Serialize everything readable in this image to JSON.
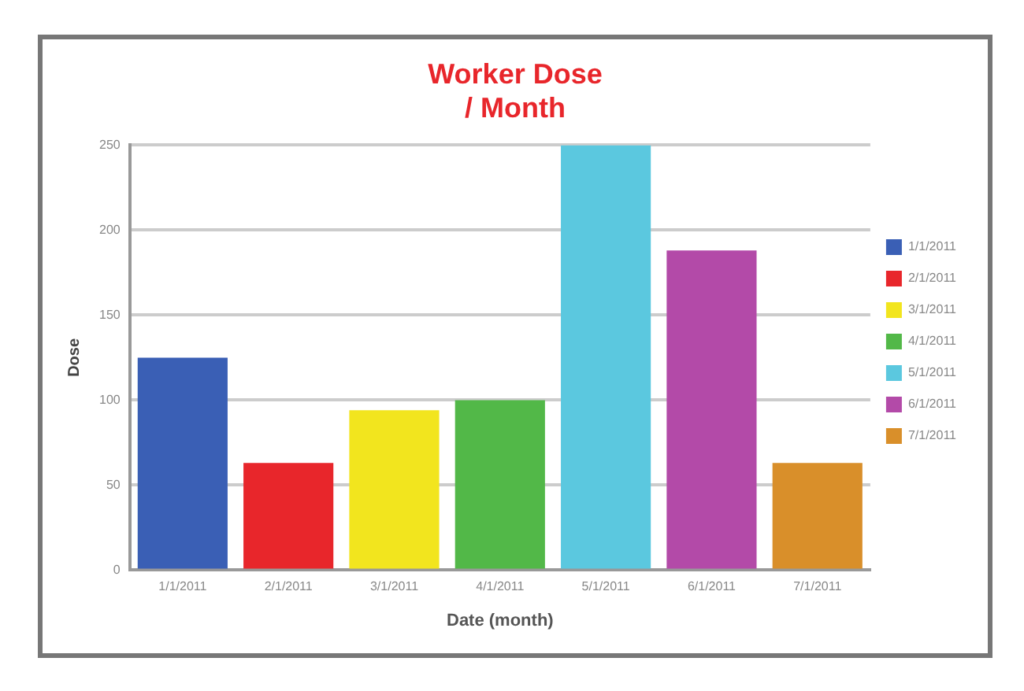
{
  "chart_data": {
    "type": "bar",
    "title": "Worker Dose\n/ Month",
    "xlabel": "Date (month)",
    "ylabel": "Dose",
    "categories": [
      "1/1/2011",
      "2/1/2011",
      "3/1/2011",
      "4/1/2011",
      "5/1/2011",
      "6/1/2011",
      "7/1/2011"
    ],
    "series": [
      {
        "name": "1/1/2011",
        "color": "#3a5fb5",
        "values": [
          125,
          null,
          null,
          null,
          null,
          null,
          null
        ]
      },
      {
        "name": "2/1/2011",
        "color": "#e8262b",
        "values": [
          null,
          63,
          null,
          null,
          null,
          null,
          null
        ]
      },
      {
        "name": "3/1/2011",
        "color": "#f2e51e",
        "values": [
          null,
          null,
          94,
          null,
          null,
          null,
          null
        ]
      },
      {
        "name": "4/1/2011",
        "color": "#52b848",
        "values": [
          null,
          null,
          null,
          100,
          null,
          null,
          null
        ]
      },
      {
        "name": "5/1/2011",
        "color": "#5bc8df",
        "values": [
          null,
          null,
          null,
          null,
          250,
          null,
          null
        ]
      },
      {
        "name": "6/1/2011",
        "color": "#b34aa8",
        "values": [
          null,
          null,
          null,
          null,
          null,
          188,
          null
        ]
      },
      {
        "name": "7/1/2011",
        "color": "#d98f2a",
        "values": [
          null,
          null,
          null,
          null,
          null,
          null,
          63
        ]
      }
    ],
    "ylim": [
      0,
      250
    ],
    "yticks": [
      0,
      50,
      100,
      150,
      200,
      250
    ],
    "grid": "y",
    "legend": "right"
  }
}
